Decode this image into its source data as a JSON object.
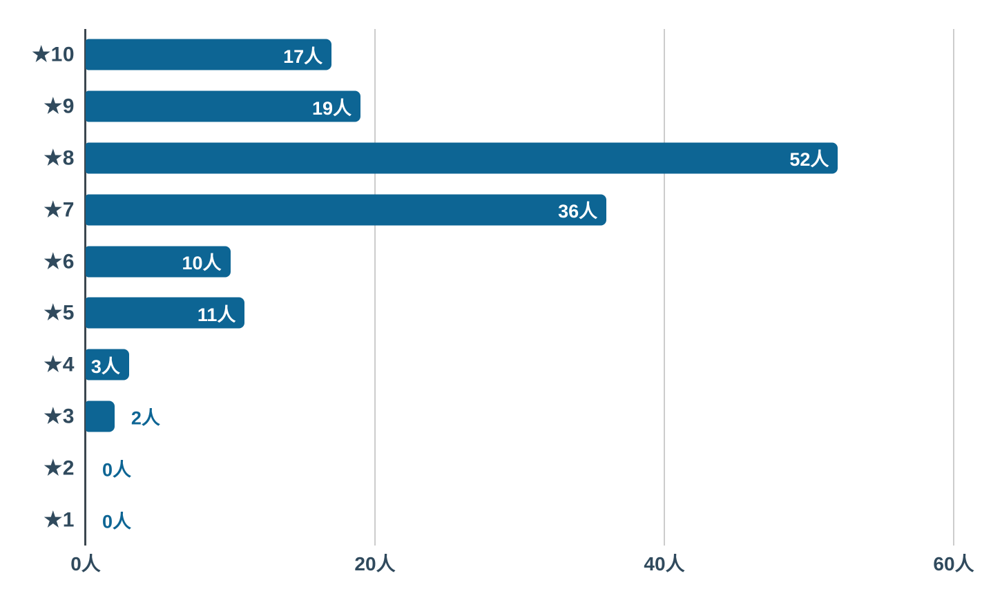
{
  "chart_data": {
    "type": "bar",
    "orientation": "horizontal",
    "title": "",
    "xlabel": "",
    "ylabel": "",
    "categories": [
      "★10",
      "★9",
      "★8",
      "★7",
      "★6",
      "★5",
      "★4",
      "★3",
      "★2",
      "★1"
    ],
    "values": [
      17,
      19,
      52,
      36,
      10,
      11,
      3,
      2,
      0,
      0
    ],
    "value_labels": [
      "17人",
      "19人",
      "52人",
      "36人",
      "10人",
      "11人",
      "3人",
      "2人",
      "0人",
      "0人"
    ],
    "unit": "人",
    "xlim": [
      0,
      60
    ],
    "x_ticks": [
      0,
      20,
      40,
      60
    ],
    "x_tick_labels": [
      "0人",
      "20人",
      "40人",
      "60人"
    ],
    "grid": true,
    "legend": false
  },
  "colors": {
    "bar": "#0d6594",
    "value_label_inside": "#ffffff",
    "value_label_outside": "#0d6594",
    "category_label": "#304a5d",
    "tick_label": "#304a5d",
    "axis_line": "#3c474f",
    "gridline": "#cccccc",
    "background": "#ffffff"
  }
}
